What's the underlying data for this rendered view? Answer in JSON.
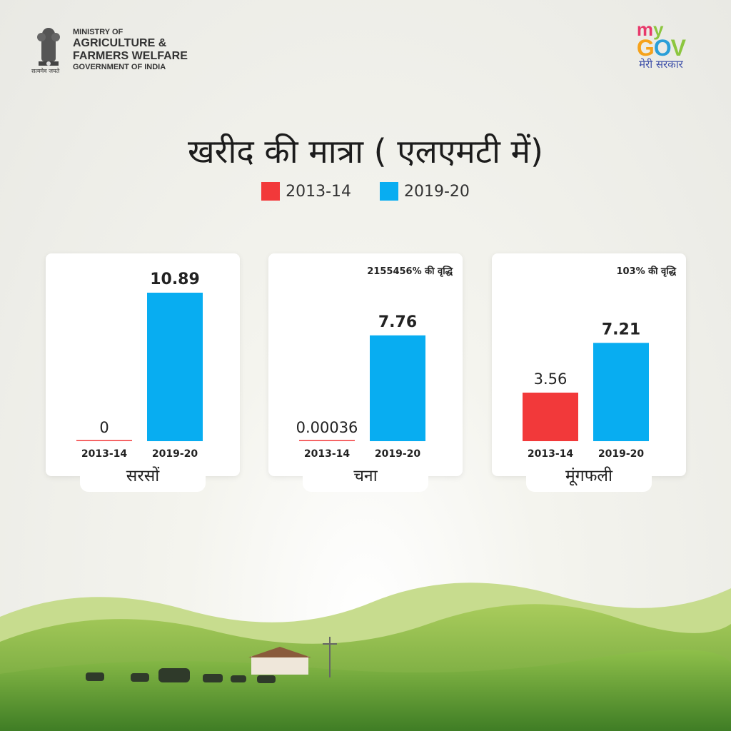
{
  "header": {
    "ministry_line1": "MINISTRY OF",
    "ministry_line2": "AGRICULTURE &",
    "ministry_line3": "FARMERS WELFARE",
    "ministry_line4": "GOVERNMENT OF INDIA",
    "emblem_motto": "सत्यमेव जयते",
    "emblem_icon": "national-emblem-icon"
  },
  "brand": {
    "my": "my",
    "gov": "GOV",
    "tagline": "मेरी सरकार",
    "colors": {
      "m": "#e8396b",
      "y": "#8cc63f",
      "g": "#f6a21b",
      "o": "#2b9fd8",
      "v": "#8cc63f"
    }
  },
  "colors": {
    "series_2013": "#f2393a",
    "series_2019": "#08adf1"
  },
  "chart_data": {
    "type": "bar",
    "title": "खरीद की मात्रा ( एलएमटी में)",
    "legend": [
      "2013-14",
      "2019-20"
    ],
    "legend_position": "top-center",
    "categories": [
      "2013-14",
      "2019-20"
    ],
    "panels": [
      {
        "crop": "सरसों",
        "values": [
          0,
          10.89
        ],
        "labels": [
          "0",
          "10.89"
        ],
        "growth": ""
      },
      {
        "crop": "चना",
        "values": [
          0.00036,
          7.76
        ],
        "labels": [
          "0.00036",
          "7.76"
        ],
        "growth": "2155456% की वृद्धि"
      },
      {
        "crop": "मूंगफली",
        "values": [
          3.56,
          7.21
        ],
        "labels": [
          "3.56",
          "7.21"
        ],
        "growth": "103% की वृद्धि"
      }
    ]
  }
}
